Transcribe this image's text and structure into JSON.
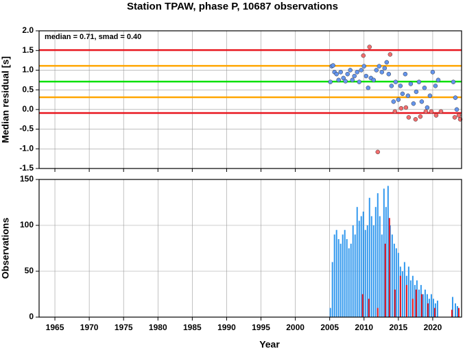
{
  "chart_data": [
    {
      "type": "scatter",
      "title": "Station TPAW, phase P, 10687 observations",
      "annotation": "median = 0.71, smad = 0.40",
      "y_label": "Median residual [s]",
      "xlim": [
        1962.7,
        2024.2
      ],
      "ylim": [
        -1.5,
        2.0
      ],
      "xticks": [
        1965,
        1970,
        1975,
        1980,
        1985,
        1990,
        1995,
        2000,
        2005,
        2010,
        2015,
        2020
      ],
      "yticks": [
        {
          "value": -1.5,
          "label": "-1.5"
        },
        {
          "value": -1.0,
          "label": "-1.0"
        },
        -0.5,
        {
          "value": 0,
          "label": "0.0"
        },
        0.5,
        {
          "value": 1,
          "label": "1.0"
        },
        1.5,
        {
          "value": 2,
          "label": "2.0"
        }
      ],
      "grid": true,
      "hlines": [
        {
          "value": 1.51,
          "color": "#e8141c"
        },
        {
          "value": 1.11,
          "color": "#ffa500"
        },
        {
          "value": 0.71,
          "color": "#00e000"
        },
        {
          "value": 0.31,
          "color": "#ffa500"
        },
        {
          "value": -0.09,
          "color": "#e8141c"
        }
      ],
      "series": [
        {
          "color": "#6495ed",
          "x": [
            2005.1,
            2005.3,
            2005.5,
            2005.7,
            2006.0,
            2006.3,
            2006.6,
            2007.0,
            2007.3,
            2007.6,
            2008.0,
            2008.3,
            2008.6,
            2009.0,
            2009.3,
            2009.6,
            2010.0,
            2010.3,
            2010.6,
            2011.0,
            2011.4,
            2011.8,
            2012.2,
            2012.6,
            2013.0,
            2013.3,
            2013.6,
            2014.0,
            2014.3,
            2014.6,
            2015.0,
            2015.3,
            2015.6,
            2016.0,
            2016.4,
            2016.8,
            2017.2,
            2017.6,
            2018.0,
            2018.4,
            2018.8,
            2019.2,
            2019.6,
            2020.0,
            2020.4,
            2020.8,
            2023.0,
            2023.3,
            2023.5
          ],
          "values": [
            0.7,
            1.1,
            1.12,
            0.95,
            0.9,
            0.75,
            0.95,
            0.8,
            0.72,
            0.9,
            1.0,
            0.75,
            0.85,
            0.95,
            0.7,
            1.0,
            1.1,
            0.85,
            0.55,
            0.8,
            0.75,
            1.0,
            1.1,
            0.95,
            1.05,
            1.2,
            0.9,
            0.6,
            0.2,
            0.7,
            0.25,
            0.6,
            0.4,
            0.9,
            0.35,
            0.65,
            0.15,
            0.45,
            0.7,
            0.2,
            0.55,
            0.05,
            0.35,
            0.95,
            0.6,
            0.75,
            0.7,
            0.3,
            0.0
          ]
        },
        {
          "color": "#f26d6d",
          "x": [
            2009.9,
            2010.8,
            2012.0,
            2013.8,
            2014.5,
            2015.4,
            2016.1,
            2016.5,
            2017.5,
            2018.2,
            2019.0,
            2019.8,
            2020.5,
            2021.2,
            2023.2,
            2023.8,
            2024.0
          ],
          "values": [
            1.37,
            1.59,
            -1.08,
            1.4,
            -0.05,
            0.03,
            0.05,
            -0.2,
            -0.25,
            -0.18,
            -0.05,
            -0.05,
            -0.15,
            -0.05,
            -0.2,
            -0.15,
            -0.25
          ]
        }
      ]
    },
    {
      "type": "bar",
      "y_label": "Observations",
      "x_label": "Year",
      "xlim": [
        1962.7,
        2024.2
      ],
      "ylim": [
        0,
        150
      ],
      "xticks": [
        1965,
        1970,
        1975,
        1980,
        1985,
        1990,
        1995,
        2000,
        2005,
        2010,
        2015,
        2020
      ],
      "yticks": [
        0,
        50,
        100,
        150
      ],
      "grid": true,
      "series": [
        {
          "color": "#3399ee",
          "x": [
            2005.1,
            2005.4,
            2005.7,
            2006.0,
            2006.3,
            2006.6,
            2006.9,
            2007.2,
            2007.5,
            2007.8,
            2008.1,
            2008.4,
            2008.7,
            2009.0,
            2009.3,
            2009.6,
            2009.9,
            2010.2,
            2010.5,
            2010.8,
            2011.1,
            2011.4,
            2011.7,
            2012.0,
            2012.3,
            2012.6,
            2012.9,
            2013.2,
            2013.5,
            2013.8,
            2014.1,
            2014.4,
            2014.7,
            2015.0,
            2015.3,
            2015.6,
            2015.9,
            2016.2,
            2016.5,
            2016.8,
            2017.1,
            2017.4,
            2017.7,
            2018.0,
            2018.3,
            2018.6,
            2018.9,
            2019.2,
            2019.5,
            2019.8,
            2020.1,
            2020.4,
            2020.7,
            2022.9,
            2023.3,
            2023.6
          ],
          "values": [
            10,
            60,
            90,
            95,
            85,
            80,
            90,
            95,
            85,
            75,
            80,
            100,
            90,
            120,
            105,
            110,
            115,
            95,
            100,
            130,
            110,
            100,
            120,
            135,
            110,
            90,
            140,
            120,
            143,
            100,
            90,
            80,
            75,
            70,
            55,
            50,
            60,
            45,
            55,
            40,
            45,
            35,
            40,
            30,
            35,
            25,
            30,
            25,
            20,
            25,
            20,
            15,
            18,
            22,
            15,
            12
          ]
        },
        {
          "color": "#e8141c",
          "x": [
            2009.8,
            2010.7,
            2012.0,
            2013.1,
            2013.7,
            2014.5,
            2015.3,
            2016.2,
            2017.1,
            2017.6,
            2018.4,
            2019.3,
            2020.3,
            2022.8,
            2023.8
          ],
          "values": [
            25,
            20,
            10,
            80,
            108,
            30,
            45,
            35,
            20,
            30,
            25,
            15,
            10,
            8,
            10
          ]
        }
      ]
    }
  ]
}
